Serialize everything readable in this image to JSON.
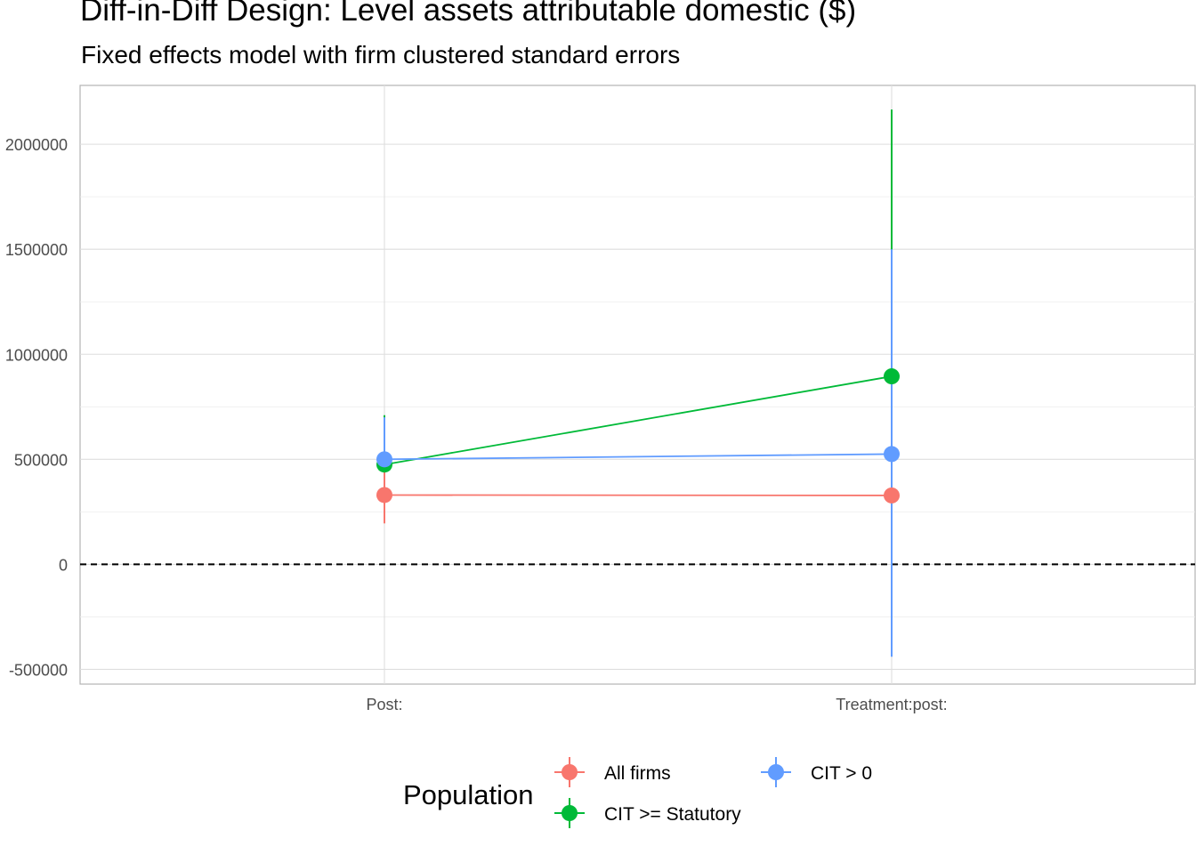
{
  "title": "Diff-in-Diff Design: Level assets attributable domestic  ($)",
  "subtitle": "Fixed effects model with firm clustered standard errors",
  "chart_data": {
    "type": "line",
    "title": "Diff-in-Diff Design: Level assets attributable domestic  ($)",
    "subtitle": "Fixed effects model with firm clustered standard errors",
    "xlabel": "",
    "ylabel": "",
    "categories": [
      "Post:",
      "Treatment:post:"
    ],
    "ylim": [
      -570000,
      2280000
    ],
    "yticks": [
      -500000,
      0,
      500000,
      1000000,
      1500000,
      2000000
    ],
    "ytick_labels": [
      "-500000",
      "0",
      "500000",
      "1000000",
      "1500000",
      "2000000"
    ],
    "grid": true,
    "reference_line": {
      "y": 0,
      "style": "dashed",
      "color": "#000000"
    },
    "legend": {
      "title": "Population",
      "position": "bottom"
    },
    "series": [
      {
        "name": "All firms",
        "color": "#F8766D",
        "values": [
          330000,
          328000
        ],
        "lower": [
          195000,
          310000
        ],
        "upper": [
          465000,
          345000
        ]
      },
      {
        "name": "CIT >= Statutory",
        "color": "#00BA38",
        "values": [
          475000,
          895000
        ],
        "lower": [
          255000,
          -370000
        ],
        "upper": [
          710000,
          2165000
        ]
      },
      {
        "name": "CIT > 0",
        "color": "#619CFF",
        "values": [
          500000,
          525000
        ],
        "lower": [
          300000,
          -440000
        ],
        "upper": [
          700000,
          1500000
        ]
      }
    ]
  }
}
